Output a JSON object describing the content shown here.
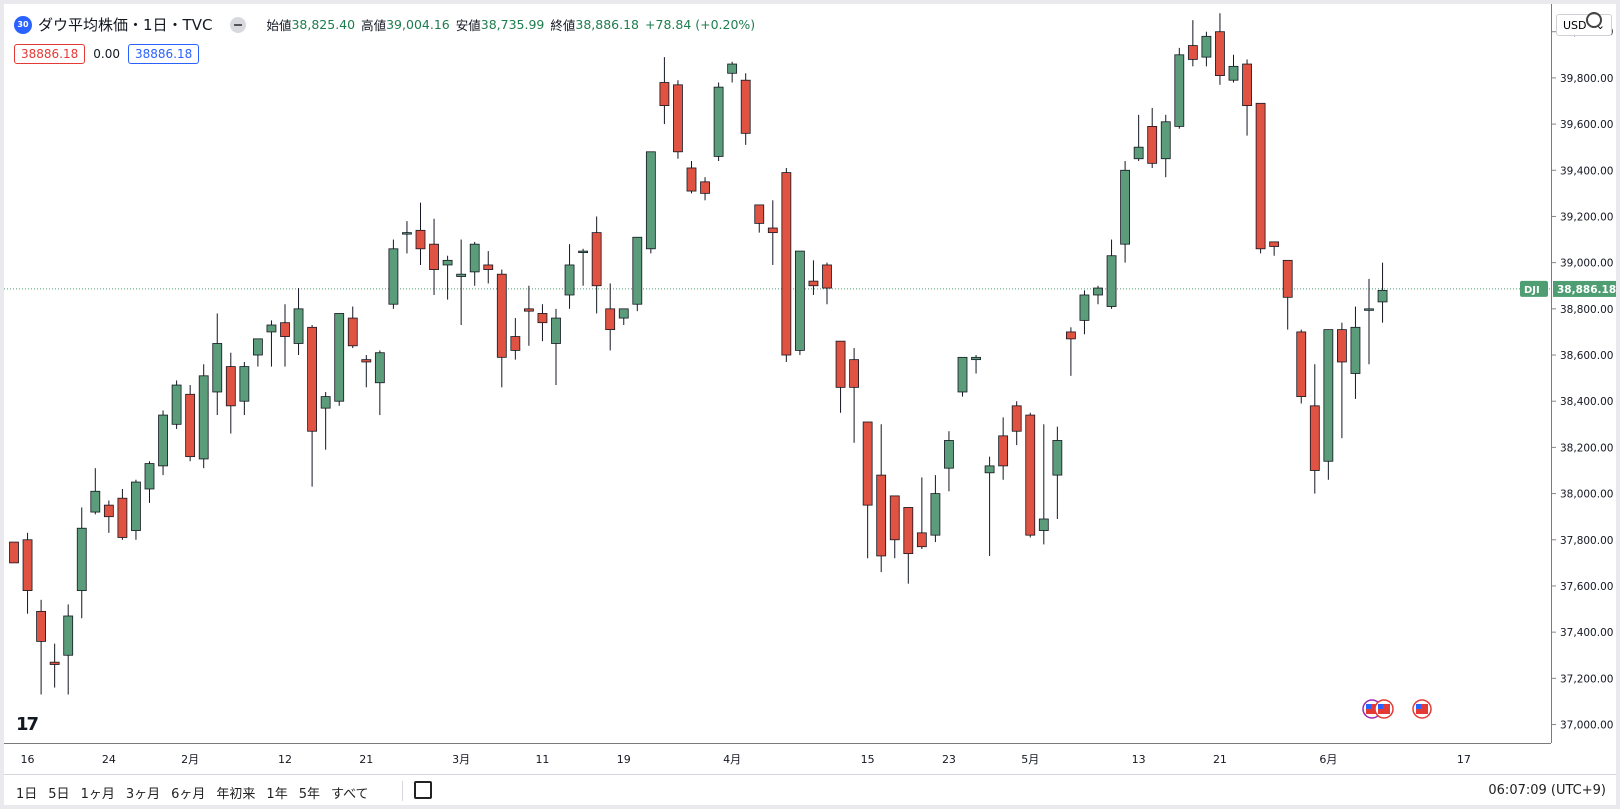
{
  "header": {
    "badge": "30",
    "title": "ダウ平均株価・1日・TVC",
    "ohlc": [
      {
        "k": "始値",
        "v": "38,825.40"
      },
      {
        "k": "高値",
        "v": "39,004.16"
      },
      {
        "k": "安値",
        "v": "38,735.99"
      },
      {
        "k": "終値",
        "v": "38,886.18"
      }
    ],
    "change": "+78.84 (+0.20%)",
    "bid": "38886.18",
    "spread": "0.00",
    "ask": "38886.18",
    "currency": "USD"
  },
  "colors": {
    "up": "#5b9d7a",
    "down": "#e05343",
    "wick": "#131722",
    "price_line": "#4f9e73"
  },
  "chart_data": {
    "type": "candlestick",
    "symbol_label": "DJI",
    "last_price": 38886.18,
    "last_price_label": "38,886.18",
    "ylim": [
      36920,
      40120
    ],
    "y_ticks": [
      37000,
      37200,
      37400,
      37600,
      37800,
      38000,
      38200,
      38400,
      38600,
      38800,
      39000,
      39200,
      39400,
      39600,
      39800,
      40000
    ],
    "y_tick_labels": [
      "37,000.00",
      "37,200.00",
      "37,400.00",
      "37,600.00",
      "37,800.00",
      "38,000.00",
      "38,200.00",
      "38,400.00",
      "38,600.00",
      "38,800.00",
      "39,000.00",
      "39,200.00",
      "39,400.00",
      "39,600.00",
      "39,800.00",
      "40,000.00"
    ],
    "x_labels": [
      {
        "label": "16",
        "i": 1
      },
      {
        "label": "24",
        "i": 7
      },
      {
        "label": "2月",
        "i": 13
      },
      {
        "label": "12",
        "i": 20
      },
      {
        "label": "21",
        "i": 26
      },
      {
        "label": "3月",
        "i": 33
      },
      {
        "label": "11",
        "i": 39
      },
      {
        "label": "19",
        "i": 45
      },
      {
        "label": "4月",
        "i": 53
      },
      {
        "label": "15",
        "i": 63
      },
      {
        "label": "23",
        "i": 69
      },
      {
        "label": "5月",
        "i": 75
      },
      {
        "label": "13",
        "i": 83
      },
      {
        "label": "21",
        "i": 89
      },
      {
        "label": "6月",
        "i": 97
      },
      {
        "label": "17",
        "i": 107
      }
    ],
    "candles": [
      [
        37790,
        37790,
        37700,
        37700
      ],
      [
        37800,
        37830,
        37480,
        37580
      ],
      [
        37490,
        37540,
        37130,
        37360
      ],
      [
        37270,
        37350,
        37160,
        37260
      ],
      [
        37300,
        37520,
        37130,
        37470
      ],
      [
        37580,
        37940,
        37460,
        37850
      ],
      [
        37920,
        38110,
        37910,
        38010
      ],
      [
        37950,
        37970,
        37830,
        37900
      ],
      [
        37980,
        38020,
        37800,
        37810
      ],
      [
        37840,
        38060,
        37800,
        38050
      ],
      [
        38020,
        38140,
        37960,
        38130
      ],
      [
        38120,
        38360,
        38080,
        38340
      ],
      [
        38300,
        38490,
        38280,
        38470
      ],
      [
        38430,
        38470,
        38140,
        38160
      ],
      [
        38150,
        38560,
        38110,
        38510
      ],
      [
        38440,
        38780,
        38340,
        38650
      ],
      [
        38550,
        38610,
        38260,
        38380
      ],
      [
        38400,
        38570,
        38340,
        38550
      ],
      [
        38600,
        38670,
        38550,
        38670
      ],
      [
        38700,
        38750,
        38550,
        38730
      ],
      [
        38740,
        38820,
        38550,
        38680
      ],
      [
        38650,
        38890,
        38600,
        38800
      ],
      [
        38720,
        38730,
        38030,
        38270
      ],
      [
        38370,
        38440,
        38190,
        38420
      ],
      [
        38400,
        38780,
        38380,
        38780
      ],
      [
        38760,
        38810,
        38630,
        38640
      ],
      [
        38580,
        38600,
        38460,
        38570
      ],
      [
        38480,
        38620,
        38340,
        38610
      ],
      [
        38820,
        39100,
        38800,
        39060
      ],
      [
        39130,
        39180,
        39040,
        39130
      ],
      [
        39140,
        39260,
        38990,
        39060
      ],
      [
        39080,
        39190,
        38860,
        38970
      ],
      [
        38990,
        39030,
        38840,
        39010
      ],
      [
        38940,
        39100,
        38730,
        38950
      ],
      [
        38960,
        39090,
        38900,
        39080
      ],
      [
        38990,
        39050,
        38910,
        38970
      ],
      [
        38950,
        38970,
        38460,
        38590
      ],
      [
        38680,
        38760,
        38580,
        38620
      ],
      [
        38800,
        38900,
        38640,
        38790
      ],
      [
        38780,
        38820,
        38660,
        38740
      ],
      [
        38650,
        38800,
        38470,
        38760
      ],
      [
        38860,
        39080,
        38800,
        38990
      ],
      [
        39050,
        39060,
        38900,
        39050
      ],
      [
        39130,
        39200,
        38780,
        38900
      ],
      [
        38800,
        38910,
        38620,
        38710
      ],
      [
        38760,
        38800,
        38730,
        38800
      ],
      [
        38820,
        39110,
        38790,
        39110
      ],
      [
        39060,
        39480,
        39040,
        39480
      ],
      [
        39780,
        39890,
        39600,
        39680
      ],
      [
        39770,
        39790,
        39450,
        39480
      ],
      [
        39410,
        39440,
        39300,
        39310
      ],
      [
        39350,
        39370,
        39270,
        39300
      ],
      [
        39460,
        39780,
        39440,
        39760
      ],
      [
        39820,
        39870,
        39780,
        39860
      ],
      [
        39790,
        39820,
        39510,
        39560
      ],
      [
        39250,
        39250,
        39130,
        39170
      ],
      [
        39150,
        39270,
        38990,
        39130
      ],
      [
        39390,
        39410,
        38570,
        38600
      ],
      [
        38620,
        39050,
        38600,
        39050
      ],
      [
        38920,
        39010,
        38860,
        38900
      ],
      [
        38990,
        39000,
        38820,
        38890
      ],
      [
        38660,
        38660,
        38350,
        38460
      ],
      [
        38580,
        38630,
        38220,
        38460
      ],
      [
        38310,
        38310,
        37720,
        37950
      ],
      [
        38080,
        38300,
        37660,
        37730
      ],
      [
        37990,
        37990,
        37720,
        37800
      ],
      [
        37940,
        37940,
        37610,
        37740
      ],
      [
        37830,
        38070,
        37760,
        37770
      ],
      [
        37820,
        38080,
        37790,
        38000
      ],
      [
        38110,
        38270,
        38010,
        38230
      ],
      [
        38440,
        38580,
        38420,
        38590
      ],
      [
        38580,
        38600,
        38520,
        38590
      ],
      [
        38090,
        38160,
        37730,
        38120
      ],
      [
        38250,
        38330,
        38060,
        38120
      ],
      [
        38380,
        38400,
        38210,
        38270
      ],
      [
        38340,
        38350,
        37810,
        37820
      ],
      [
        37840,
        38300,
        37780,
        37890
      ],
      [
        38080,
        38290,
        37890,
        38230
      ],
      [
        38700,
        38720,
        38510,
        38670
      ],
      [
        38750,
        38880,
        38690,
        38860
      ],
      [
        38860,
        38900,
        38820,
        38890
      ],
      [
        38810,
        39100,
        38800,
        39030
      ],
      [
        39080,
        39440,
        39000,
        39400
      ],
      [
        39450,
        39640,
        39440,
        39500
      ],
      [
        39590,
        39670,
        39410,
        39430
      ],
      [
        39450,
        39640,
        39370,
        39610
      ],
      [
        39590,
        39930,
        39580,
        39900
      ],
      [
        39940,
        40050,
        39850,
        39880
      ],
      [
        39890,
        40000,
        39850,
        39980
      ],
      [
        40000,
        40080,
        39770,
        39810
      ],
      [
        39790,
        39900,
        39780,
        39850
      ],
      [
        39860,
        39880,
        39550,
        39680
      ],
      [
        39690,
        39690,
        39040,
        39060
      ],
      [
        39090,
        39090,
        39030,
        39070
      ],
      [
        39010,
        39010,
        38710,
        38850
      ],
      [
        38700,
        38710,
        38390,
        38420
      ],
      [
        38380,
        38560,
        38000,
        38100
      ],
      [
        38140,
        38700,
        38060,
        38710
      ],
      [
        38710,
        38740,
        38240,
        38570
      ],
      [
        38520,
        38810,
        38410,
        38720
      ],
      [
        38800,
        38930,
        38560,
        38800
      ],
      [
        38830,
        39000,
        38740,
        38880
      ]
    ]
  },
  "bottom": {
    "timeframes": [
      "1日",
      "5日",
      "1ヶ月",
      "3ヶ月",
      "6ヶ月",
      "年初来",
      "1年",
      "5年",
      "すべて"
    ],
    "clock": "06:07:09 (UTC+9)"
  },
  "logo": "17"
}
